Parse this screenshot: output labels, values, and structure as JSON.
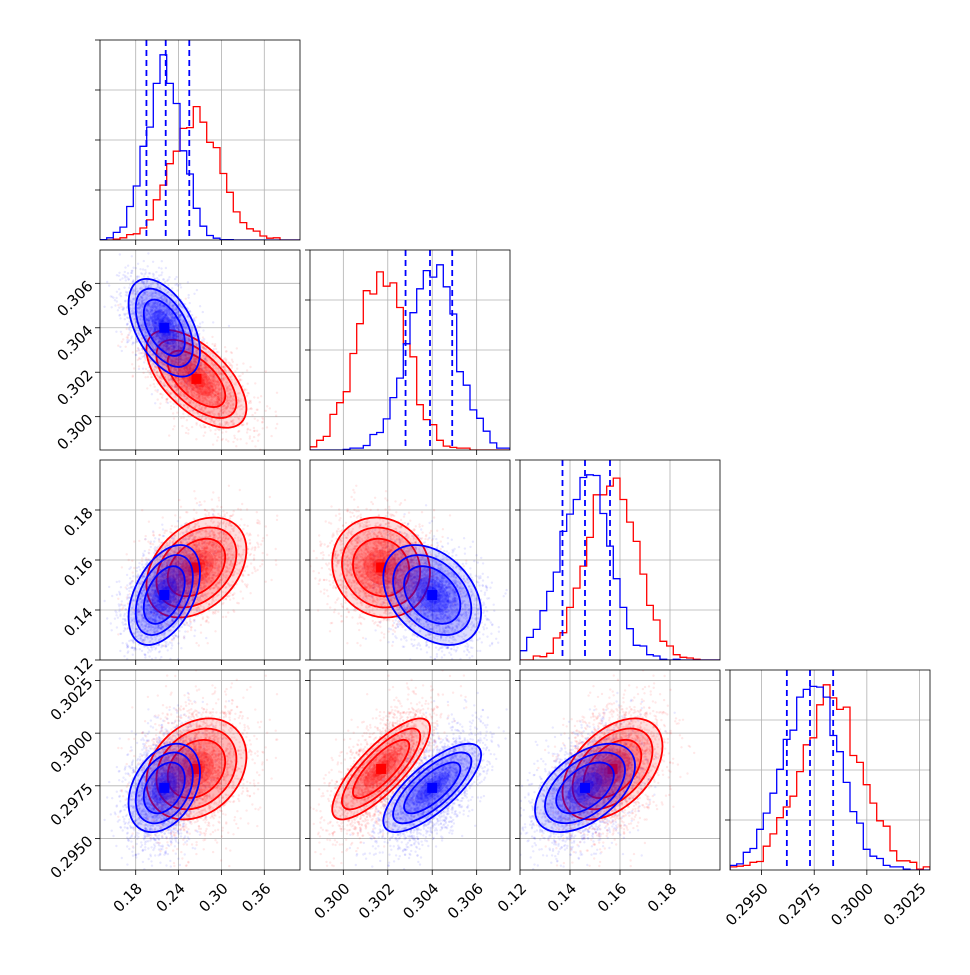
{
  "chart_data": {
    "type": "corner",
    "title": "",
    "parameters": [
      {
        "name": "",
        "range": [
          0.13,
          0.41
        ],
        "ticks": [
          0.18,
          0.24,
          0.3,
          0.36
        ],
        "tick_labels": [
          "0.18",
          "0.24",
          "0.30",
          "0.36"
        ]
      },
      {
        "name": "",
        "range": [
          0.2985,
          0.3075
        ],
        "ticks": [
          0.3,
          0.302,
          0.304,
          0.306
        ],
        "tick_labels": [
          "0.300",
          "0.302",
          "0.304",
          "0.306"
        ]
      },
      {
        "name": "",
        "range": [
          0.12,
          0.2
        ],
        "ticks": [
          0.12,
          0.14,
          0.16,
          0.18
        ],
        "tick_labels": [
          "0.12",
          "0.14",
          "0.16",
          "0.18"
        ]
      },
      {
        "name": "",
        "range": [
          0.2935,
          0.303
        ],
        "ticks": [
          0.295,
          0.2975,
          0.3,
          0.3025
        ],
        "tick_labels": [
          "0.2950",
          "0.2975",
          "0.3000",
          "0.3025"
        ]
      }
    ],
    "series": [
      {
        "color": "#0000ff",
        "mean": [
          0.22,
          0.304,
          0.146,
          0.2974
        ],
        "std": [
          0.025,
          0.0011,
          0.01,
          0.00105
        ],
        "quantiles": [
          [
            0.195,
            0.222,
            0.255
          ],
          [
            0.3028,
            0.3039,
            0.3049
          ],
          [
            0.137,
            0.146,
            0.156
          ],
          [
            0.2962,
            0.2973,
            0.2984
          ]
        ],
        "correlation": [
          [
            1,
            -0.5,
            0.45,
            0.35
          ],
          [
            -0.5,
            1,
            -0.35,
            0.75
          ],
          [
            0.45,
            -0.35,
            1,
            0.5
          ],
          [
            0.35,
            0.75,
            0.5,
            1
          ]
        ]
      },
      {
        "color": "#ff0000",
        "mean": [
          0.265,
          0.3017,
          0.157,
          0.2983
        ],
        "std": [
          0.035,
          0.0011,
          0.01,
          0.0012
        ],
        "quantiles": null,
        "correlation": [
          [
            1,
            -0.6,
            0.35,
            0.25
          ],
          [
            -0.6,
            1,
            -0.1,
            0.8
          ],
          [
            0.35,
            -0.1,
            1,
            0.45
          ],
          [
            0.25,
            0.8,
            0.45,
            1
          ]
        ]
      }
    ],
    "grid": true,
    "legend": "none"
  }
}
